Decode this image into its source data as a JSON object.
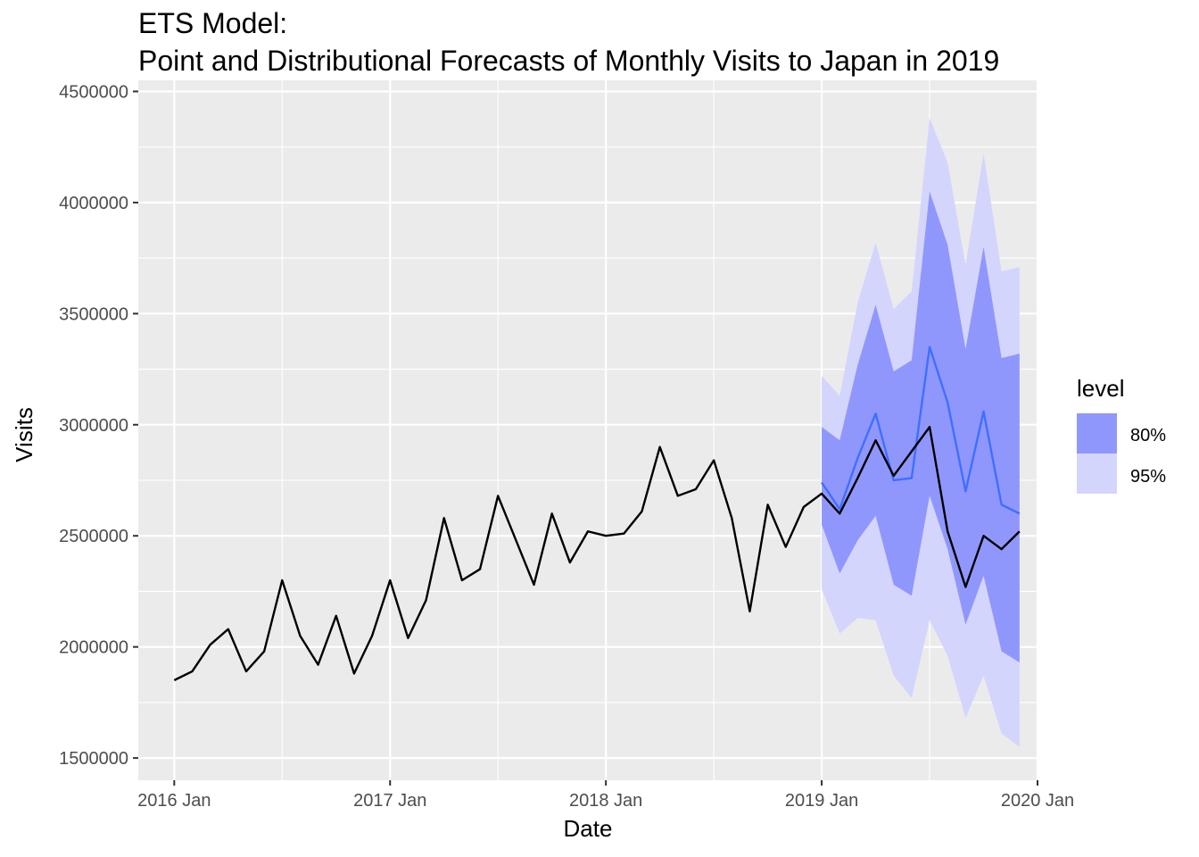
{
  "chart_data": {
    "type": "line",
    "title_line1": "ETS Model:",
    "title_line2": "Point and Distributional Forecasts of Monthly Visits to Japan in 2019",
    "xlabel": "Date",
    "ylabel": "Visits",
    "xlim": [
      "2015-11",
      "2020-01"
    ],
    "ylim": [
      1400000,
      4550000
    ],
    "x_ticks": [
      "2016 Jan",
      "2017 Jan",
      "2018 Jan",
      "2019 Jan",
      "2020 Jan"
    ],
    "y_ticks": [
      1500000,
      2000000,
      2500000,
      3000000,
      3500000,
      4000000,
      4500000
    ],
    "y_tick_labels": [
      "1500000",
      "2000000",
      "2500000",
      "3000000",
      "3500000",
      "4000000",
      "4500000"
    ],
    "grid": true,
    "background": "#ebebeb",
    "legend": {
      "title": "level",
      "placement": "right",
      "entries": [
        {
          "label": "80%",
          "color": "#9097fc"
        },
        {
          "label": "95%",
          "color": "#d4d5fd"
        }
      ]
    },
    "series": [
      {
        "kind": "actual",
        "color": "#000000",
        "x": [
          "2016-01",
          "2016-02",
          "2016-03",
          "2016-04",
          "2016-05",
          "2016-06",
          "2016-07",
          "2016-08",
          "2016-09",
          "2016-10",
          "2016-11",
          "2016-12",
          "2017-01",
          "2017-02",
          "2017-03",
          "2017-04",
          "2017-05",
          "2017-06",
          "2017-07",
          "2017-08",
          "2017-09",
          "2017-10",
          "2017-11",
          "2017-12",
          "2018-01",
          "2018-02",
          "2018-03",
          "2018-04",
          "2018-05",
          "2018-06",
          "2018-07",
          "2018-08",
          "2018-09",
          "2018-10",
          "2018-11",
          "2018-12",
          "2019-01",
          "2019-02",
          "2019-03",
          "2019-04",
          "2019-05",
          "2019-06",
          "2019-07",
          "2019-08",
          "2019-09",
          "2019-10",
          "2019-11",
          "2019-12"
        ],
        "values": [
          1850000,
          1890000,
          2010000,
          2080000,
          1890000,
          1980000,
          2300000,
          2050000,
          1920000,
          2140000,
          1880000,
          2050000,
          2300000,
          2040000,
          2210000,
          2580000,
          2300000,
          2350000,
          2680000,
          2480000,
          2280000,
          2600000,
          2380000,
          2520000,
          2500000,
          2510000,
          2610000,
          2900000,
          2680000,
          2710000,
          2840000,
          2580000,
          2160000,
          2640000,
          2450000,
          2630000,
          2690000,
          2600000,
          2760000,
          2930000,
          2770000,
          2880000,
          2990000,
          2520000,
          2270000,
          2500000,
          2440000,
          2520000
        ]
      },
      {
        "kind": "forecast",
        "color": "#3f6fff",
        "x": [
          "2019-01",
          "2019-02",
          "2019-03",
          "2019-04",
          "2019-05",
          "2019-06",
          "2019-07",
          "2019-08",
          "2019-09",
          "2019-10",
          "2019-11",
          "2019-12"
        ],
        "values": [
          2740000,
          2620000,
          2850000,
          3050000,
          2750000,
          2760000,
          3350000,
          3100000,
          2700000,
          3060000,
          2640000,
          2600000
        ]
      }
    ],
    "intervals": [
      {
        "level": "95%",
        "color": "#d4d5fd",
        "x": [
          "2019-01",
          "2019-02",
          "2019-03",
          "2019-04",
          "2019-05",
          "2019-06",
          "2019-07",
          "2019-08",
          "2019-09",
          "2019-10",
          "2019-11",
          "2019-12"
        ],
        "lower": [
          2260000,
          2060000,
          2130000,
          2120000,
          1870000,
          1770000,
          2120000,
          1960000,
          1680000,
          1870000,
          1610000,
          1550000
        ],
        "upper": [
          3220000,
          3130000,
          3550000,
          3820000,
          3520000,
          3600000,
          4380000,
          4180000,
          3720000,
          4220000,
          3690000,
          3710000
        ]
      },
      {
        "level": "80%",
        "color": "#9097fc",
        "x": [
          "2019-01",
          "2019-02",
          "2019-03",
          "2019-04",
          "2019-05",
          "2019-06",
          "2019-07",
          "2019-08",
          "2019-09",
          "2019-10",
          "2019-11",
          "2019-12"
        ],
        "lower": [
          2550000,
          2330000,
          2480000,
          2590000,
          2280000,
          2230000,
          2680000,
          2440000,
          2100000,
          2320000,
          1980000,
          1930000
        ],
        "upper": [
          2990000,
          2930000,
          3270000,
          3540000,
          3240000,
          3290000,
          4050000,
          3810000,
          3340000,
          3800000,
          3300000,
          3320000
        ]
      }
    ]
  }
}
